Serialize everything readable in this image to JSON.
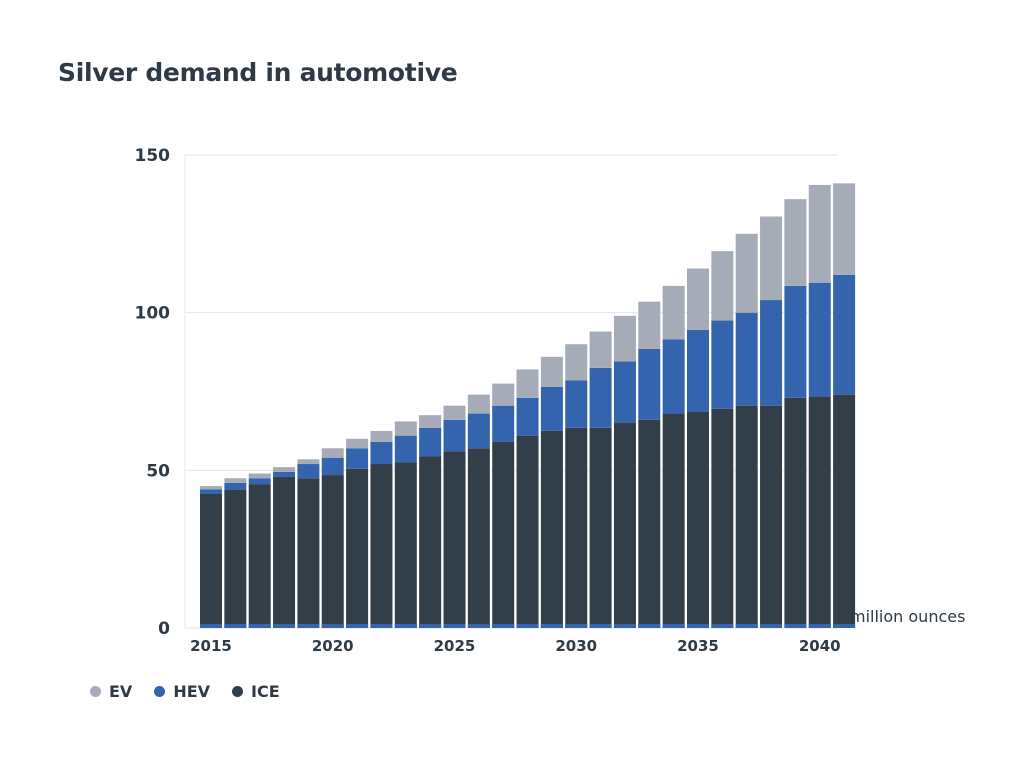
{
  "chart_data": {
    "type": "bar",
    "stacked": true,
    "title": "Silver demand in automotive",
    "xlabel": "",
    "ylabel": "",
    "unit_label": "million ounces",
    "ylim": [
      0,
      150
    ],
    "yticks": [
      0,
      50,
      100,
      150
    ],
    "xtick_labels": [
      "2015",
      "2020",
      "2025",
      "2030",
      "2035",
      "2040"
    ],
    "grid": true,
    "legend_position": "bottom-left",
    "categories": [
      "2015",
      "2016",
      "2017",
      "2018",
      "2019",
      "2020",
      "2021",
      "2022",
      "2023",
      "2024",
      "2025",
      "2026",
      "2027",
      "2028",
      "2029",
      "2030",
      "2031",
      "2032",
      "2033",
      "2034",
      "2035",
      "2036",
      "2037",
      "2038",
      "2039",
      "2040",
      "2041"
    ],
    "series": [
      {
        "name": "ICE",
        "color": "#323e48",
        "values": [
          42.5,
          44,
          45.5,
          48,
          47.5,
          48.5,
          50.5,
          52,
          52.5,
          54.5,
          56,
          57,
          59,
          61,
          62.5,
          63.5,
          63.5,
          65,
          66,
          68,
          68.5,
          69.5,
          70.5,
          70.5,
          73,
          73.5,
          74
        ]
      },
      {
        "name": "HEV",
        "color": "#3464ae",
        "values": [
          1.5,
          2,
          2,
          1.5,
          4.5,
          5.5,
          6.5,
          7,
          8.5,
          9,
          10,
          11,
          11.5,
          12,
          14,
          15,
          19,
          19.5,
          22.5,
          23.5,
          26,
          28,
          29.5,
          33.5,
          35.5,
          36,
          38
        ]
      },
      {
        "name": "EV",
        "color": "#a5acb7",
        "values": [
          1,
          1.5,
          1.5,
          1.5,
          1.5,
          3,
          3,
          3.5,
          4.5,
          4,
          4.5,
          6,
          7,
          9,
          9.5,
          11.5,
          11.5,
          14.5,
          15,
          17,
          19.5,
          22,
          25,
          26.5,
          27.5,
          31,
          29
        ]
      }
    ]
  },
  "legend": [
    {
      "label": "EV",
      "color": "#a5acb7"
    },
    {
      "label": "HEV",
      "color": "#3464ae"
    },
    {
      "label": "ICE",
      "color": "#323e48"
    }
  ]
}
